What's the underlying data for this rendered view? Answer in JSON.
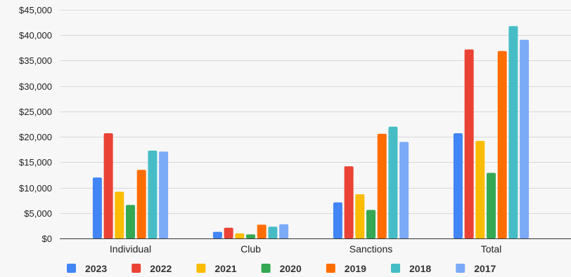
{
  "chart_data": {
    "type": "bar",
    "title": "",
    "xlabel": "",
    "ylabel": "",
    "categories": [
      "Individual",
      "Club",
      "Sanctions",
      "Total"
    ],
    "ylim": [
      0,
      45000
    ],
    "yticks": [
      0,
      5000,
      10000,
      15000,
      20000,
      25000,
      30000,
      35000,
      40000,
      45000
    ],
    "ytick_labels": [
      "$0",
      "$5,000",
      "$10,000",
      "$15,000",
      "$20,000",
      "$25,000",
      "$30,000",
      "$35,000",
      "$40,000",
      "$45,000"
    ],
    "grid": true,
    "legend_position": "bottom",
    "series": [
      {
        "name": "2023",
        "color": "#4285f4",
        "values": [
          12000,
          1300,
          7100,
          20700
        ]
      },
      {
        "name": "2022",
        "color": "#ea4335",
        "values": [
          20700,
          2100,
          14200,
          37200
        ]
      },
      {
        "name": "2021",
        "color": "#fbbc04",
        "values": [
          9200,
          1000,
          8700,
          19200
        ]
      },
      {
        "name": "2020",
        "color": "#34a853",
        "values": [
          6600,
          800,
          5600,
          12900
        ]
      },
      {
        "name": "2019",
        "color": "#ff6d01",
        "values": [
          13500,
          2700,
          20600,
          36900
        ]
      },
      {
        "name": "2018",
        "color": "#46bdc6",
        "values": [
          17300,
          2300,
          22000,
          41800
        ]
      },
      {
        "name": "2017",
        "color": "#7baaf7",
        "values": [
          17100,
          2800,
          19000,
          39100
        ]
      }
    ]
  }
}
